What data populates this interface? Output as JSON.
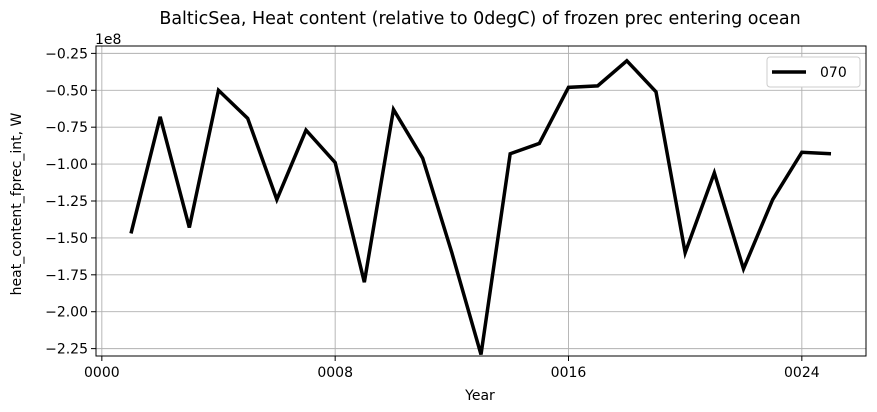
{
  "chart_data": {
    "type": "line",
    "title": "BalticSea, Heat content (relative to 0degC) of frozen prec entering ocean",
    "xlabel": "Year",
    "ylabel": "heat_content_fprec_int, W",
    "y_offset_label": "1e8",
    "xlim": [
      -0.2,
      26.2
    ],
    "ylim": [
      -230000000.0,
      -20000000.0
    ],
    "x_ticks": [
      0,
      8,
      16,
      24
    ],
    "x_tick_labels": [
      "0000",
      "0008",
      "0016",
      "0024"
    ],
    "y_ticks": [
      -225000000.0,
      -200000000.0,
      -175000000.0,
      -150000000.0,
      -125000000.0,
      -100000000.0,
      -75000000.0,
      -50000000.0,
      -25000000.0
    ],
    "y_tick_labels": [
      "−2.25",
      "−2.00",
      "−1.75",
      "−1.50",
      "−1.25",
      "−1.00",
      "−0.75",
      "−0.50",
      "−0.25"
    ],
    "grid": true,
    "legend_position": "top-right",
    "series": [
      {
        "name": "070",
        "color": "#000000",
        "x": [
          1,
          2,
          3,
          4,
          5,
          6,
          7,
          8,
          9,
          10,
          11,
          12,
          13,
          14,
          15,
          16,
          17,
          18,
          19,
          20,
          21,
          22,
          23,
          24,
          25
        ],
        "values": [
          -147000000.0,
          -68000000.0,
          -143000000.0,
          -50000000.0,
          -69000000.0,
          -124000000.0,
          -77000000.0,
          -99000000.0,
          -180000000.0,
          -63000000.0,
          -96000000.0,
          -160000000.0,
          -229000000.0,
          -93000000.0,
          -86000000.0,
          -48000000.0,
          -47000000.0,
          -30000000.0,
          -51000000.0,
          -160000000.0,
          -106000000.0,
          -171000000.0,
          -124000000.0,
          -92000000.0,
          -93000000.0
        ]
      }
    ]
  }
}
